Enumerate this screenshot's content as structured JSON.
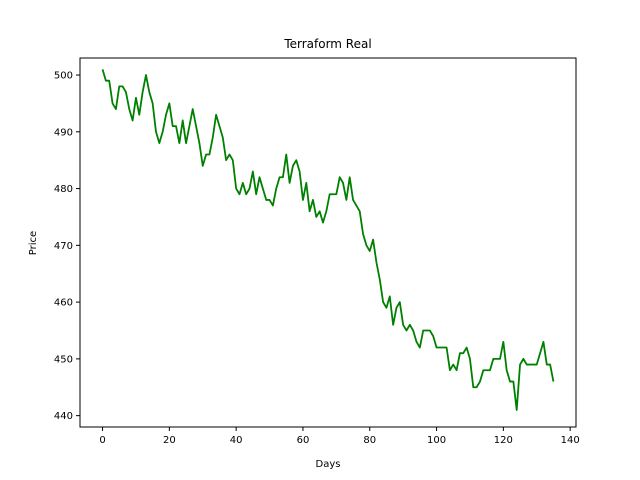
{
  "chart_data": {
    "type": "line",
    "title": "Terraform Real",
    "xlabel": "Days",
    "ylabel": "Price",
    "xlim": [
      -6.75,
      141.75
    ],
    "ylim": [
      438.0,
      503.0
    ],
    "xticks": [
      0,
      20,
      40,
      60,
      80,
      100,
      120,
      140
    ],
    "yticks": [
      440,
      450,
      460,
      470,
      480,
      490,
      500
    ],
    "grid": false,
    "legend": "none",
    "series": [
      {
        "color": "#008000",
        "x": [
          0,
          1,
          2,
          3,
          4,
          5,
          6,
          7,
          8,
          9,
          10,
          11,
          12,
          13,
          14,
          15,
          16,
          17,
          18,
          19,
          20,
          21,
          22,
          23,
          24,
          25,
          26,
          27,
          28,
          29,
          30,
          31,
          32,
          33,
          34,
          35,
          36,
          37,
          38,
          39,
          40,
          41,
          42,
          43,
          44,
          45,
          46,
          47,
          48,
          49,
          50,
          51,
          52,
          53,
          54,
          55,
          56,
          57,
          58,
          59,
          60,
          61,
          62,
          63,
          64,
          65,
          66,
          67,
          68,
          69,
          70,
          71,
          72,
          73,
          74,
          75,
          76,
          77,
          78,
          79,
          80,
          81,
          82,
          83,
          84,
          85,
          86,
          87,
          88,
          89,
          90,
          91,
          92,
          93,
          94,
          95,
          96,
          97,
          98,
          99,
          100,
          101,
          102,
          103,
          104,
          105,
          106,
          107,
          108,
          109,
          110,
          111,
          112,
          113,
          114,
          115,
          116,
          117,
          118,
          119,
          120,
          121,
          122,
          123,
          124,
          125,
          126,
          127,
          128,
          129,
          130,
          131,
          132,
          133,
          134,
          135
        ],
        "values": [
          501,
          499,
          499,
          495,
          494,
          498,
          498,
          497,
          494,
          492,
          496,
          493,
          497,
          500,
          497,
          495,
          490,
          488,
          490,
          493,
          495,
          491,
          491,
          488,
          492,
          488,
          491,
          494,
          491,
          488,
          484,
          486,
          486,
          489,
          493,
          491,
          489,
          485,
          486,
          485,
          480,
          479,
          481,
          479,
          480,
          483,
          479,
          482,
          480,
          478,
          478,
          477,
          480,
          482,
          482,
          486,
          481,
          484,
          485,
          483,
          478,
          481,
          476,
          478,
          475,
          476,
          474,
          476,
          479,
          479,
          479,
          482,
          481,
          478,
          482,
          478,
          477,
          476,
          472,
          470,
          469,
          471,
          467,
          464,
          460,
          459,
          461,
          456,
          459,
          460,
          456,
          455,
          456,
          455,
          453,
          452,
          455,
          455,
          455,
          454,
          452,
          452,
          452,
          452,
          448,
          449,
          448,
          451,
          451,
          452,
          450,
          445,
          445,
          446,
          448,
          448,
          448,
          450,
          450,
          450,
          453,
          448,
          446,
          446,
          441,
          449,
          450,
          449,
          449,
          449,
          449,
          451,
          453,
          449,
          449,
          446
        ]
      }
    ]
  }
}
